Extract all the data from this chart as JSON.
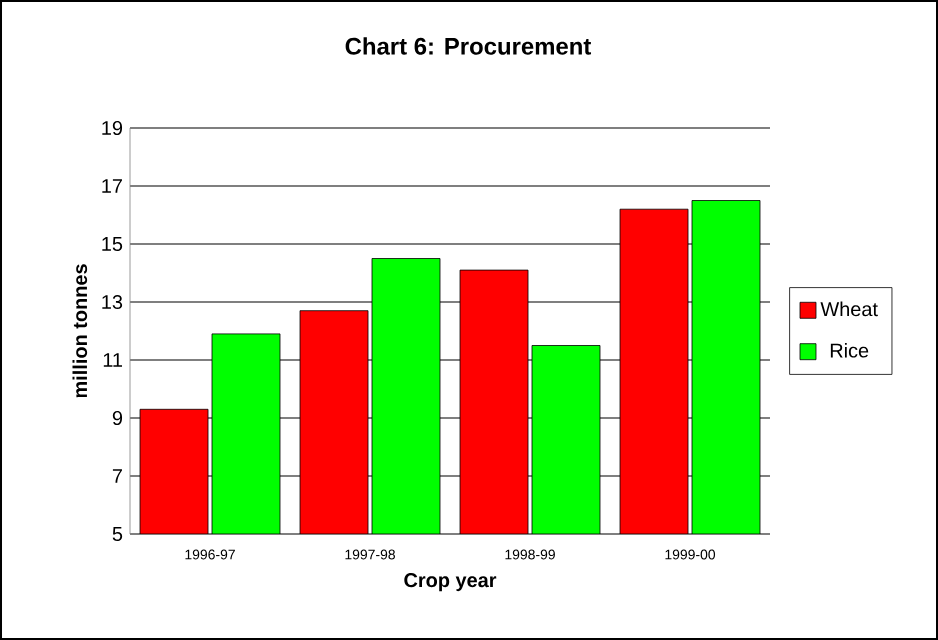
{
  "chart_data": {
    "type": "bar",
    "title": "Chart 6: Procurement",
    "xlabel": "Crop year",
    "ylabel": "million tonnes",
    "categories": [
      "1996-97",
      "1997-98",
      "1998-99",
      "1999-00"
    ],
    "series": [
      {
        "name": "Wheat",
        "color": "#ff0000",
        "values": [
          9.3,
          12.7,
          14.1,
          16.2
        ]
      },
      {
        "name": "Rice",
        "color": "#00ff00",
        "values": [
          11.9,
          14.5,
          11.5,
          16.5
        ]
      }
    ],
    "ylim": [
      5,
      19
    ],
    "yticks": [
      5,
      7,
      9,
      11,
      13,
      15,
      17,
      19
    ],
    "grid": "y",
    "legend": "right"
  }
}
